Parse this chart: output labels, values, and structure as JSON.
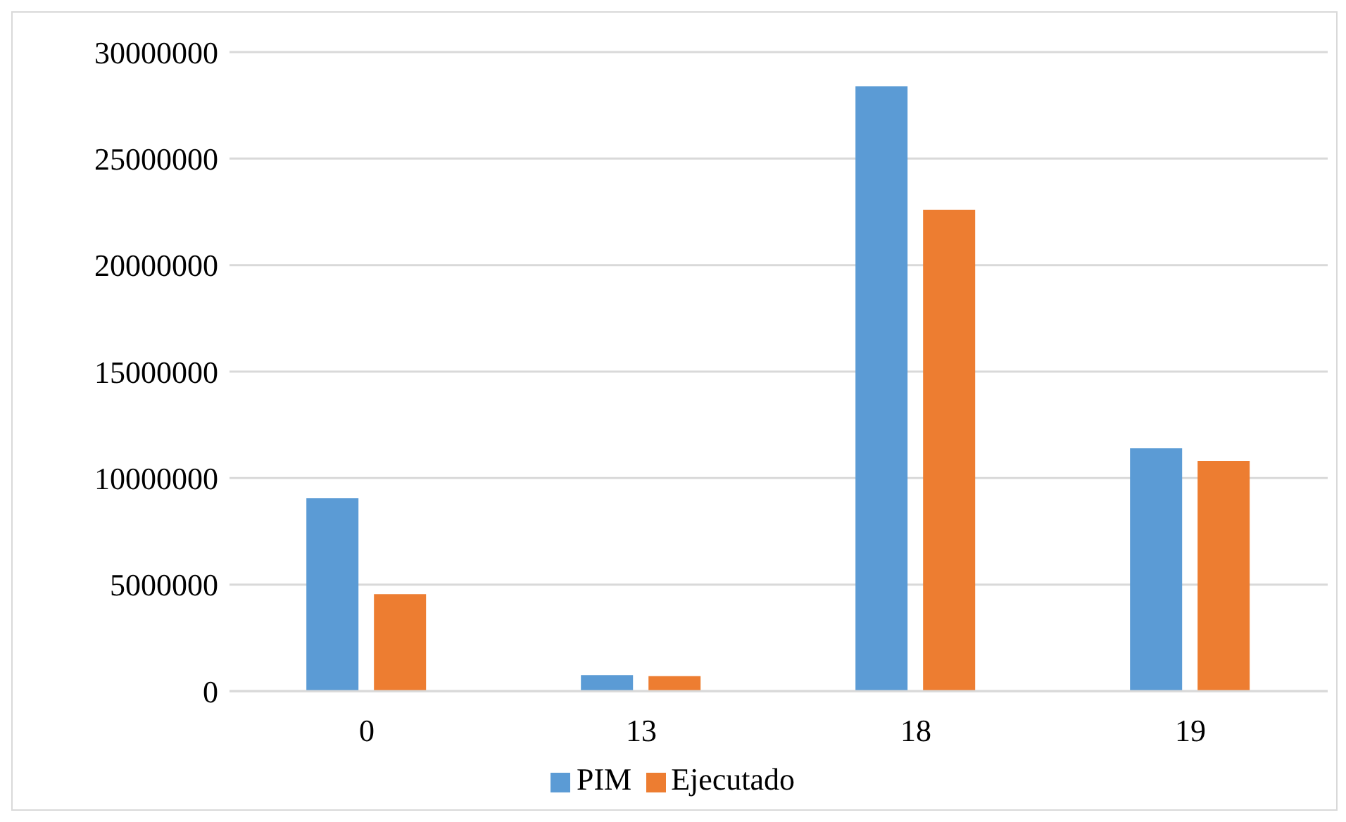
{
  "chart_data": {
    "type": "bar",
    "categories": [
      "0",
      "13",
      "18",
      "19"
    ],
    "series": [
      {
        "name": "PIM",
        "color": "#5b9bd5",
        "values": [
          9050000,
          750000,
          28400000,
          11400000
        ]
      },
      {
        "name": "Ejecutado",
        "color": "#ed7d31",
        "values": [
          4550000,
          700000,
          22600000,
          10800000
        ]
      }
    ],
    "ylim": [
      0,
      30000000
    ],
    "yticks": [
      0,
      5000000,
      10000000,
      15000000,
      20000000,
      25000000,
      30000000
    ],
    "grid": "y",
    "legend": "bottom"
  }
}
